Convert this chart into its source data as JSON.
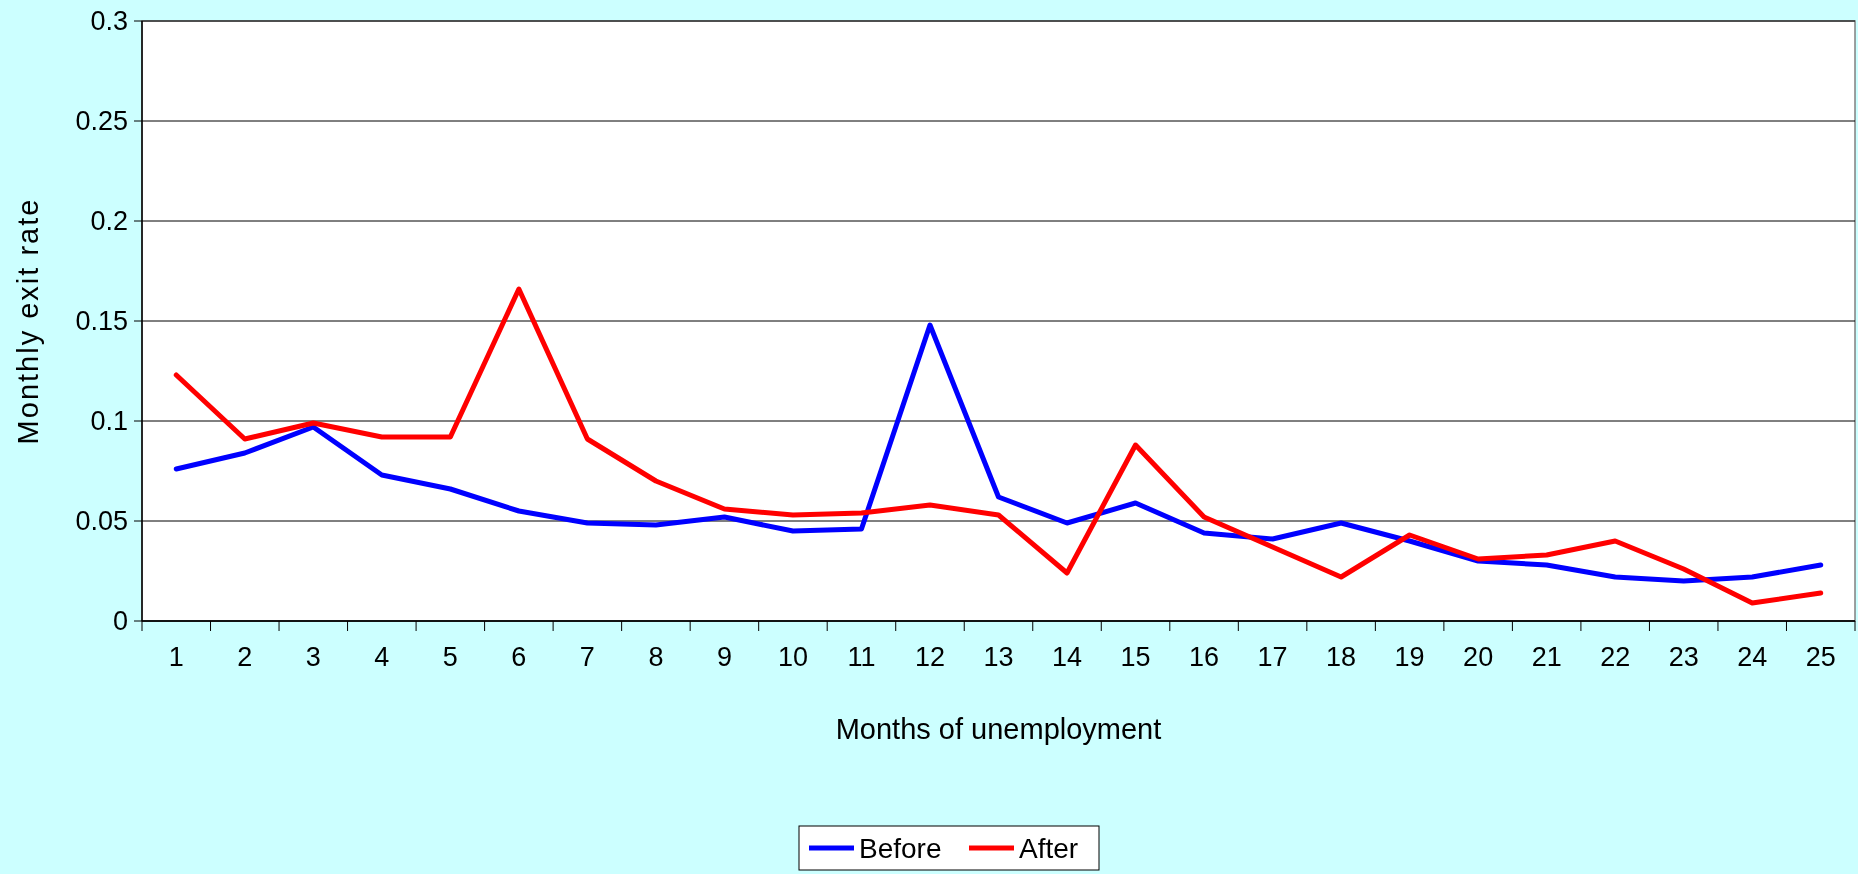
{
  "chart_data": {
    "type": "line",
    "xlabel": "Months of unemployment",
    "ylabel": "Monthly exit rate",
    "x": [
      1,
      2,
      3,
      4,
      5,
      6,
      7,
      8,
      9,
      10,
      11,
      12,
      13,
      14,
      15,
      16,
      17,
      18,
      19,
      20,
      21,
      22,
      23,
      24,
      25
    ],
    "xlim": [
      0.5,
      25.5
    ],
    "xticks": [
      1,
      2,
      3,
      4,
      5,
      6,
      7,
      8,
      9,
      10,
      11,
      12,
      13,
      14,
      15,
      16,
      17,
      18,
      19,
      20,
      21,
      22,
      23,
      24,
      25
    ],
    "series": [
      {
        "name": "Before",
        "color": "#0000ff",
        "values": [
          0.076,
          0.084,
          0.097,
          0.073,
          0.066,
          0.055,
          0.049,
          0.048,
          0.052,
          0.045,
          0.046,
          0.148,
          0.062,
          0.049,
          0.059,
          0.044,
          0.041,
          0.049,
          0.04,
          0.03,
          0.028,
          0.022,
          0.02,
          0.022,
          0.028
        ]
      },
      {
        "name": "After",
        "color": "#ff0000",
        "values": [
          0.123,
          0.091,
          0.099,
          0.092,
          0.092,
          0.166,
          0.091,
          0.07,
          0.056,
          0.053,
          0.054,
          0.058,
          0.053,
          0.024,
          0.088,
          0.052,
          0.037,
          0.022,
          0.043,
          0.031,
          0.033,
          0.04,
          0.026,
          0.009,
          0.014
        ]
      }
    ],
    "ylim": [
      0,
      0.3
    ],
    "yticks": [
      0,
      0.05,
      0.1,
      0.15,
      0.2,
      0.25,
      0.3
    ],
    "grid": "y",
    "legend": "bottom",
    "marker": "none",
    "line_style": "solid"
  }
}
